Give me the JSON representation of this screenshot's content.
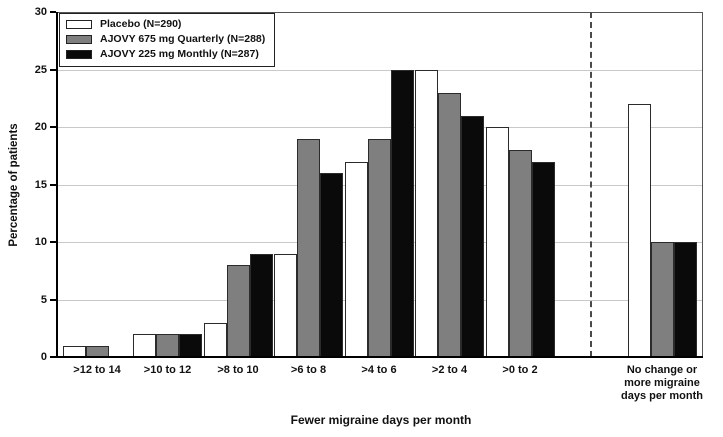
{
  "chart_data": {
    "type": "bar",
    "title": "",
    "xlabel": "Fewer migraine days per month",
    "ylabel": "Percentage of patients",
    "ylim": [
      0,
      30
    ],
    "yticks": [
      0,
      5,
      10,
      15,
      20,
      25,
      30
    ],
    "grid": true,
    "legend_position": "top-left",
    "categories": [
      ">12 to 14",
      ">10 to 12",
      ">8 to 10",
      ">6 to 8",
      ">4 to 6",
      ">2 to 4",
      ">0 to 2",
      "No change or\nmore migraine\ndays per month"
    ],
    "separator_after_category_index": 6,
    "series": [
      {
        "name": "Placebo (N=290)",
        "color": "#ffffff",
        "values": [
          1,
          2,
          3,
          9,
          17,
          25,
          20,
          22
        ]
      },
      {
        "name": "AJOVY 675 mg Quarterly (N=288)",
        "color": "#7f7f7f",
        "values": [
          1,
          2,
          8,
          19,
          19,
          23,
          18,
          10
        ]
      },
      {
        "name": "AJOVY 225 mg Monthly (N=287)",
        "color": "#0a0a0a",
        "values": [
          0,
          2,
          9,
          16,
          25,
          21,
          17,
          10
        ]
      }
    ]
  },
  "colors": {
    "gridline": "#c9c9c9",
    "frame": "#555555",
    "axis": "#000000",
    "separator": "#4a4a4a",
    "bar_border": "#2b2b2b",
    "background": "#ffffff",
    "text": "#111111"
  }
}
